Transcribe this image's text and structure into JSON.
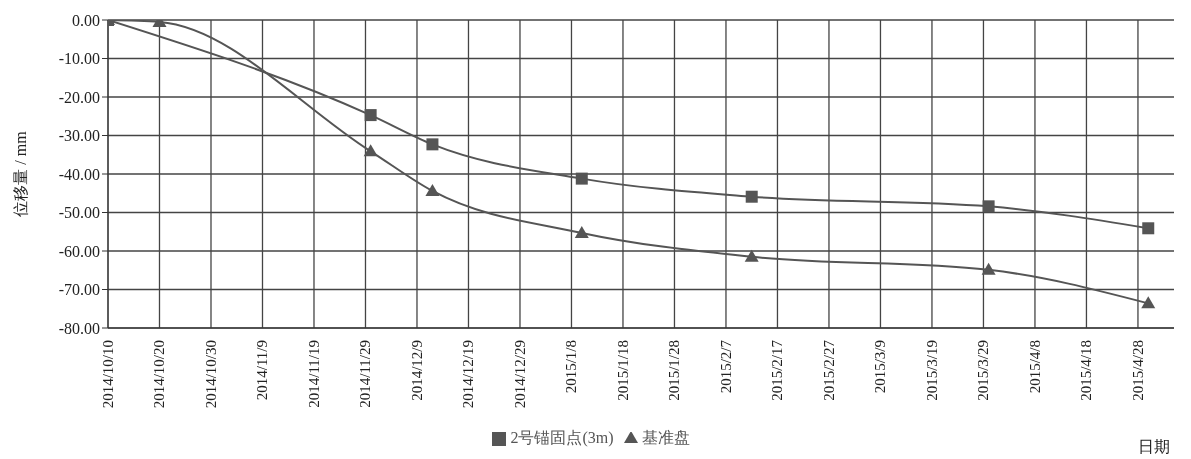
{
  "chart_data": {
    "type": "line",
    "ylabel": "位移量 / mm",
    "xlabel": "日期",
    "x": [
      "2014-10-10",
      "2014-10-20",
      "2014-11-30",
      "2014-12-12",
      "2015-01-10",
      "2015-02-12",
      "2015-03-30",
      "2015-04-30"
    ],
    "series": [
      {
        "name": "2号锚固点(3m)",
        "color": "#555555",
        "marker": "square",
        "values": [
          0,
          null,
          -24.7,
          -32.3,
          -41.2,
          -45.9,
          -48.4,
          -54.1
        ]
      },
      {
        "name": "基准盘",
        "color": "#555555",
        "marker": "triangle",
        "values": [
          0,
          -0.5,
          -34.1,
          -44.4,
          -55.3,
          -61.5,
          -64.9,
          -73.6
        ]
      }
    ],
    "xlim": [
      "2014-10-10",
      "2015-05-05"
    ],
    "xticks": [
      {
        "value": "2014-10-10",
        "label": "2014/10/10"
      },
      {
        "value": "2014-10-20",
        "label": "2014/10/20"
      },
      {
        "value": "2014-10-30",
        "label": "2014/10/30"
      },
      {
        "value": "2014-11-09",
        "label": "2014/11/9"
      },
      {
        "value": "2014-11-19",
        "label": "2014/11/19"
      },
      {
        "value": "2014-11-29",
        "label": "2014/11/29"
      },
      {
        "value": "2014-12-09",
        "label": "2014/12/9"
      },
      {
        "value": "2014-12-19",
        "label": "2014/12/19"
      },
      {
        "value": "2014-12-29",
        "label": "2014/12/29"
      },
      {
        "value": "2015-01-08",
        "label": "2015/1/8"
      },
      {
        "value": "2015-01-18",
        "label": "2015/1/18"
      },
      {
        "value": "2015-01-28",
        "label": "2015/1/28"
      },
      {
        "value": "2015-02-07",
        "label": "2015/2/7"
      },
      {
        "value": "2015-02-17",
        "label": "2015/2/17"
      },
      {
        "value": "2015-02-27",
        "label": "2015/2/27"
      },
      {
        "value": "2015-03-09",
        "label": "2015/3/9"
      },
      {
        "value": "2015-03-19",
        "label": "2015/3/19"
      },
      {
        "value": "2015-03-29",
        "label": "2015/3/29"
      },
      {
        "value": "2015-04-08",
        "label": "2015/4/8"
      },
      {
        "value": "2015-04-18",
        "label": "2015/4/18"
      },
      {
        "value": "2015-04-28",
        "label": "2015/4/28"
      }
    ],
    "ylim": [
      -80,
      0
    ],
    "yticks": [
      {
        "value": 0,
        "label": "0.00"
      },
      {
        "value": -10,
        "label": "-10.00"
      },
      {
        "value": -20,
        "label": "-20.00"
      },
      {
        "value": -30,
        "label": "-30.00"
      },
      {
        "value": -40,
        "label": "-40.00"
      },
      {
        "value": -50,
        "label": "-50.00"
      },
      {
        "value": -60,
        "label": "-60.00"
      },
      {
        "value": -70,
        "label": "-70.00"
      },
      {
        "value": -80,
        "label": "-80.00"
      }
    ],
    "grid": true,
    "legend": "bottom",
    "line_style": "solid"
  }
}
